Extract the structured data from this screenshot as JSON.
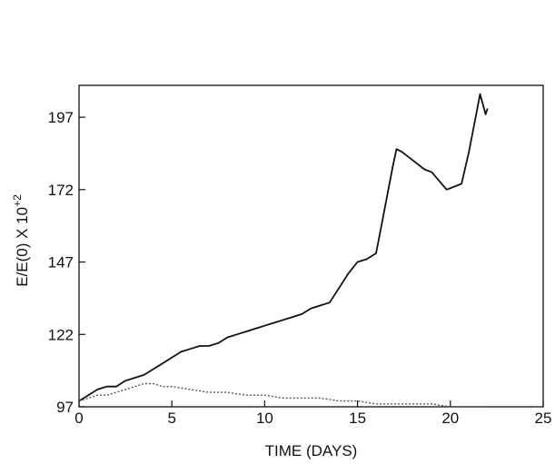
{
  "chart_data": {
    "type": "line",
    "title": "",
    "xlabel": "TIME (DAYS)",
    "ylabel": "E/E(0) X 10",
    "ylabel_exponent": "+2",
    "xlim": [
      0,
      25
    ],
    "ylim": [
      97,
      208
    ],
    "xticks": [
      0,
      5,
      10,
      15,
      20,
      25
    ],
    "yticks": [
      97,
      122,
      147,
      172,
      197
    ],
    "grid": false,
    "legend": "none",
    "colors": {
      "axis": "#111111",
      "series_upper": "#111111",
      "series_lower": "#555555"
    },
    "series": [
      {
        "line_style": "solid",
        "x": [
          0,
          0.5,
          1.0,
          1.5,
          2.0,
          2.5,
          3.0,
          3.5,
          4.0,
          4.5,
          5.0,
          5.5,
          6.0,
          6.5,
          7.0,
          7.5,
          8.0,
          8.5,
          9.0,
          9.5,
          10.0,
          10.5,
          11.0,
          11.5,
          12.0,
          12.5,
          13.0,
          13.5,
          14.0,
          14.5,
          15.0,
          15.5,
          16.0,
          16.3,
          16.6,
          16.9,
          17.1,
          17.4,
          17.8,
          18.2,
          18.6,
          19.0,
          19.4,
          19.8,
          20.2,
          20.6,
          21.0,
          21.3,
          21.6,
          21.9,
          22.0
        ],
        "y": [
          99,
          101,
          103,
          104,
          104,
          106,
          107,
          108,
          110,
          112,
          114,
          116,
          117,
          118,
          118,
          119,
          121,
          122,
          123,
          124,
          125,
          126,
          127,
          128,
          129,
          131,
          132,
          133,
          138,
          143,
          147,
          148,
          150,
          160,
          170,
          180,
          186,
          185,
          183,
          181,
          179,
          178,
          175,
          172,
          173,
          174,
          185,
          195,
          205,
          198,
          200
        ]
      },
      {
        "line_style": "dotted",
        "x": [
          0,
          0.5,
          1.0,
          1.5,
          2.0,
          2.5,
          3.0,
          3.5,
          4.0,
          4.5,
          5.0,
          6.0,
          7.0,
          8.0,
          9.0,
          10.0,
          11.0,
          12.0,
          13.0,
          14.0,
          15.0,
          16.0,
          17.0,
          18.0,
          19.0,
          20.0,
          21.0,
          22.0
        ],
        "y": [
          99,
          100,
          101,
          101,
          102,
          103,
          104,
          105,
          105,
          104,
          104,
          103,
          102,
          102,
          101,
          101,
          100,
          100,
          100,
          99,
          99,
          98,
          98,
          98,
          98,
          97,
          97,
          97
        ]
      }
    ]
  }
}
